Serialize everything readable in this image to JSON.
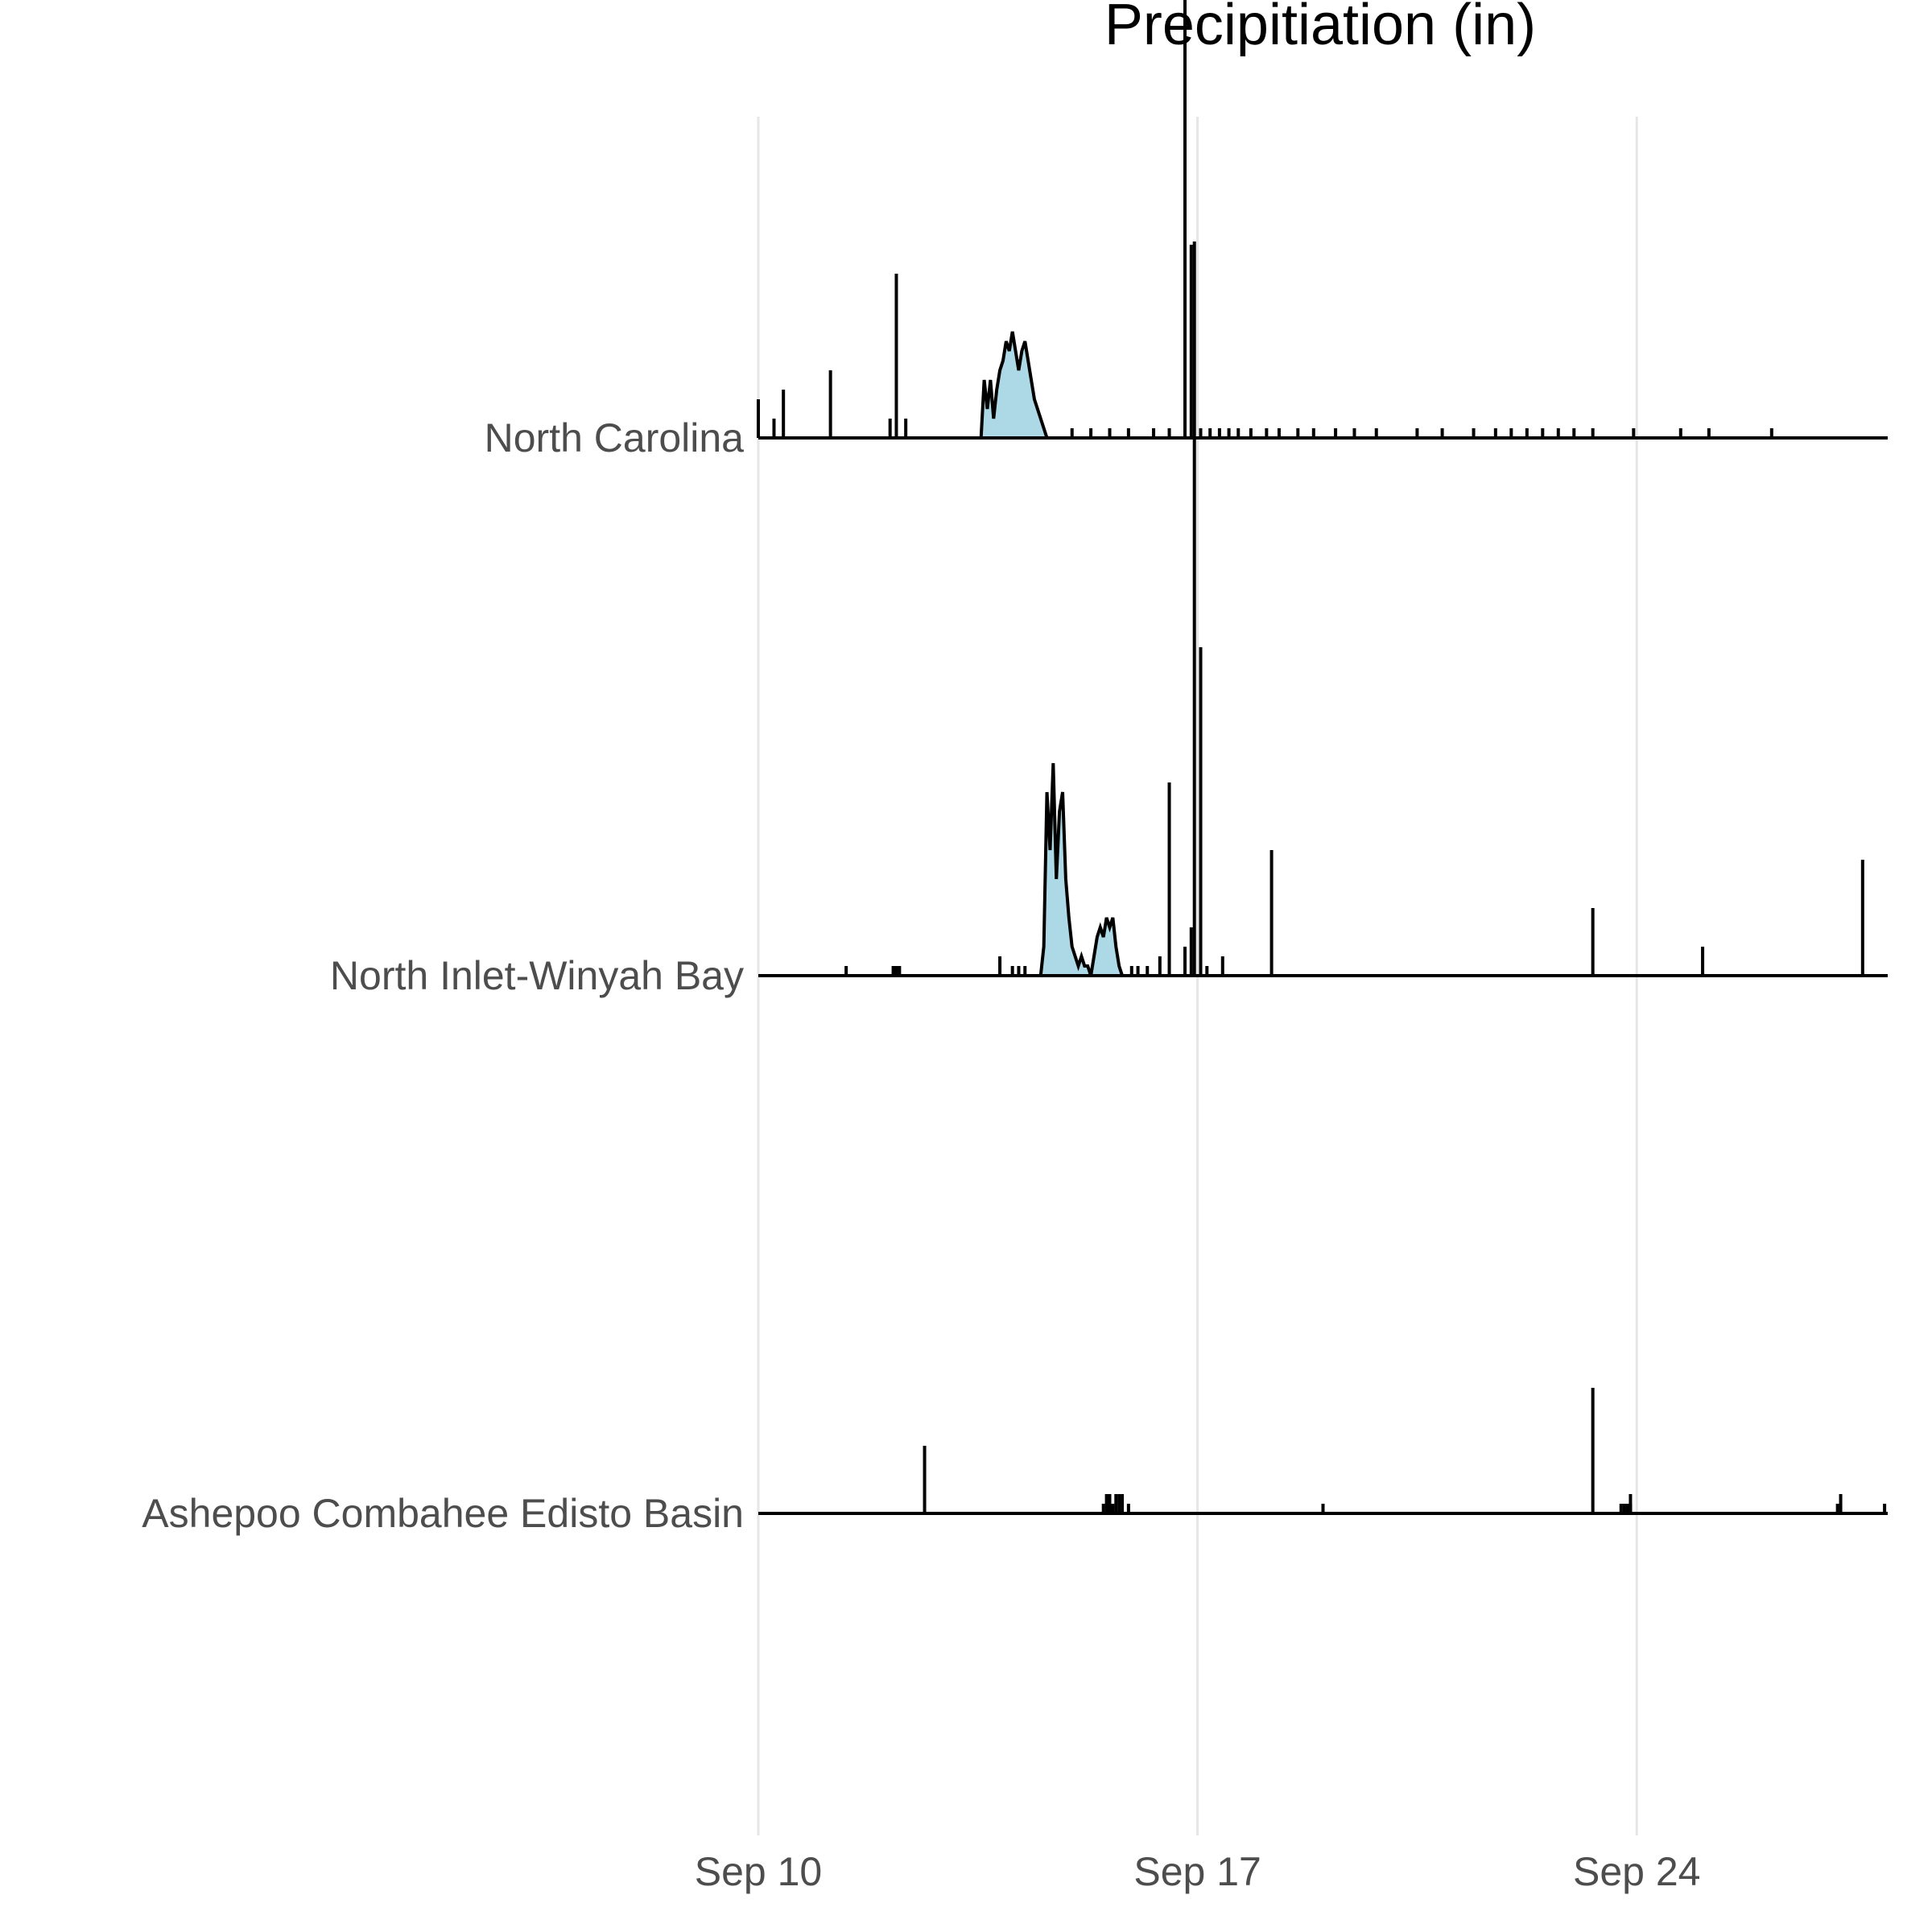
{
  "chart_data": {
    "type": "ridgeline",
    "title": "Precipitiation (in)",
    "x_axis": {
      "type": "date",
      "range": [
        "2018-09-10",
        "2018-09-28"
      ],
      "ticks": [
        {
          "date": "2018-09-10",
          "label": "Sep 10"
        },
        {
          "date": "2018-09-17",
          "label": "Sep 17"
        },
        {
          "date": "2018-09-24",
          "label": "Sep 24"
        }
      ],
      "grid": true
    },
    "y_axis": {
      "type": "category",
      "grid": false
    },
    "colors": {
      "fill": "#add8e6",
      "line": "#000000",
      "grid": "#e6e6e6"
    },
    "series": [
      {
        "name": "North Carolina",
        "spikes": [
          {
            "day": 10.0,
            "value": 0.04
          },
          {
            "day": 10.25,
            "value": 0.02
          },
          {
            "day": 10.4,
            "value": 0.05
          },
          {
            "day": 11.15,
            "value": 0.07
          },
          {
            "day": 12.1,
            "value": 0.02
          },
          {
            "day": 12.2,
            "value": 0.17
          },
          {
            "day": 12.35,
            "value": 0.02
          },
          {
            "day": 16.8,
            "value": 0.5
          },
          {
            "day": 16.9,
            "value": 0.2
          },
          {
            "day": 17.05,
            "value": 0.01
          },
          {
            "day": 17.2,
            "value": 0.01
          },
          {
            "day": 17.35,
            "value": 0.01
          },
          {
            "day": 17.5,
            "value": 0.01
          },
          {
            "day": 17.65,
            "value": 0.01
          },
          {
            "day": 17.85,
            "value": 0.01
          },
          {
            "day": 18.1,
            "value": 0.01
          },
          {
            "day": 18.3,
            "value": 0.01
          },
          {
            "day": 18.6,
            "value": 0.01
          },
          {
            "day": 18.85,
            "value": 0.01
          },
          {
            "day": 19.2,
            "value": 0.01
          },
          {
            "day": 19.5,
            "value": 0.01
          },
          {
            "day": 19.85,
            "value": 0.01
          },
          {
            "day": 20.5,
            "value": 0.01
          },
          {
            "day": 20.9,
            "value": 0.01
          },
          {
            "day": 21.4,
            "value": 0.01
          },
          {
            "day": 21.75,
            "value": 0.01
          },
          {
            "day": 22.0,
            "value": 0.01
          },
          {
            "day": 22.25,
            "value": 0.01
          },
          {
            "day": 22.5,
            "value": 0.01
          },
          {
            "day": 22.75,
            "value": 0.01
          },
          {
            "day": 23.0,
            "value": 0.01
          },
          {
            "day": 23.3,
            "value": 0.01
          },
          {
            "day": 23.95,
            "value": 0.01
          },
          {
            "day": 24.7,
            "value": 0.01
          },
          {
            "day": 25.15,
            "value": 0.01
          },
          {
            "day": 26.15,
            "value": 0.01
          },
          {
            "day": 16.3,
            "value": 0.01
          },
          {
            "day": 16.55,
            "value": 0.01
          },
          {
            "day": 15.0,
            "value": 0.01
          },
          {
            "day": 15.3,
            "value": 0.01
          },
          {
            "day": 15.6,
            "value": 0.01
          },
          {
            "day": 15.9,
            "value": 0.01
          }
        ],
        "event": [
          {
            "day": 13.55,
            "value": 0.0
          },
          {
            "day": 13.6,
            "value": 0.06
          },
          {
            "day": 13.65,
            "value": 0.03
          },
          {
            "day": 13.7,
            "value": 0.06
          },
          {
            "day": 13.75,
            "value": 0.02
          },
          {
            "day": 13.8,
            "value": 0.05
          },
          {
            "day": 13.85,
            "value": 0.07
          },
          {
            "day": 13.9,
            "value": 0.08
          },
          {
            "day": 13.95,
            "value": 0.1
          },
          {
            "day": 14.0,
            "value": 0.09
          },
          {
            "day": 14.05,
            "value": 0.11
          },
          {
            "day": 14.1,
            "value": 0.09
          },
          {
            "day": 14.15,
            "value": 0.07
          },
          {
            "day": 14.2,
            "value": 0.09
          },
          {
            "day": 14.25,
            "value": 0.1
          },
          {
            "day": 14.3,
            "value": 0.08
          },
          {
            "day": 14.35,
            "value": 0.06
          },
          {
            "day": 14.4,
            "value": 0.04
          },
          {
            "day": 14.45,
            "value": 0.03
          },
          {
            "day": 14.5,
            "value": 0.02
          },
          {
            "day": 14.55,
            "value": 0.01
          },
          {
            "day": 14.6,
            "value": 0.0
          }
        ]
      },
      {
        "name": "North Inlet-Winyah Bay",
        "spikes": [
          {
            "day": 11.4,
            "value": 0.01
          },
          {
            "day": 12.15,
            "value": 0.01
          },
          {
            "day": 12.2,
            "value": 0.01
          },
          {
            "day": 12.25,
            "value": 0.01
          },
          {
            "day": 13.85,
            "value": 0.02
          },
          {
            "day": 14.05,
            "value": 0.01
          },
          {
            "day": 14.15,
            "value": 0.01
          },
          {
            "day": 14.25,
            "value": 0.01
          },
          {
            "day": 15.95,
            "value": 0.01
          },
          {
            "day": 16.05,
            "value": 0.01
          },
          {
            "day": 16.2,
            "value": 0.01
          },
          {
            "day": 16.4,
            "value": 0.02
          },
          {
            "day": 16.55,
            "value": 0.2
          },
          {
            "day": 16.8,
            "value": 0.03
          },
          {
            "day": 16.9,
            "value": 0.05
          },
          {
            "day": 16.95,
            "value": 0.76
          },
          {
            "day": 17.05,
            "value": 0.34
          },
          {
            "day": 17.15,
            "value": 0.01
          },
          {
            "day": 17.4,
            "value": 0.02
          },
          {
            "day": 18.18,
            "value": 0.13
          },
          {
            "day": 23.3,
            "value": 0.07
          },
          {
            "day": 25.05,
            "value": 0.03
          },
          {
            "day": 27.6,
            "value": 0.12
          }
        ],
        "event": [
          {
            "day": 14.5,
            "value": 0.0
          },
          {
            "day": 14.55,
            "value": 0.03
          },
          {
            "day": 14.6,
            "value": 0.19
          },
          {
            "day": 14.65,
            "value": 0.13
          },
          {
            "day": 14.7,
            "value": 0.22
          },
          {
            "day": 14.75,
            "value": 0.1
          },
          {
            "day": 14.8,
            "value": 0.17
          },
          {
            "day": 14.85,
            "value": 0.19
          },
          {
            "day": 14.9,
            "value": 0.1
          },
          {
            "day": 14.95,
            "value": 0.06
          },
          {
            "day": 15.0,
            "value": 0.03
          },
          {
            "day": 15.05,
            "value": 0.02
          },
          {
            "day": 15.1,
            "value": 0.01
          },
          {
            "day": 15.15,
            "value": 0.02
          },
          {
            "day": 15.2,
            "value": 0.01
          },
          {
            "day": 15.25,
            "value": 0.01
          },
          {
            "day": 15.3,
            "value": 0.0
          },
          {
            "day": 15.35,
            "value": 0.02
          },
          {
            "day": 15.4,
            "value": 0.04
          },
          {
            "day": 15.45,
            "value": 0.05
          },
          {
            "day": 15.5,
            "value": 0.04
          },
          {
            "day": 15.55,
            "value": 0.06
          },
          {
            "day": 15.6,
            "value": 0.05
          },
          {
            "day": 15.65,
            "value": 0.06
          },
          {
            "day": 15.7,
            "value": 0.03
          },
          {
            "day": 15.75,
            "value": 0.01
          },
          {
            "day": 15.8,
            "value": 0.0
          }
        ]
      },
      {
        "name": "Ashepoo Combahee Edisto Basin",
        "spikes": [
          {
            "day": 12.65,
            "value": 0.07
          },
          {
            "day": 15.5,
            "value": 0.01
          },
          {
            "day": 15.55,
            "value": 0.02
          },
          {
            "day": 15.6,
            "value": 0.02
          },
          {
            "day": 15.65,
            "value": 0.01
          },
          {
            "day": 15.7,
            "value": 0.02
          },
          {
            "day": 15.75,
            "value": 0.02
          },
          {
            "day": 15.8,
            "value": 0.02
          },
          {
            "day": 15.9,
            "value": 0.01
          },
          {
            "day": 19.0,
            "value": 0.01
          },
          {
            "day": 23.3,
            "value": 0.13
          },
          {
            "day": 23.75,
            "value": 0.01
          },
          {
            "day": 23.8,
            "value": 0.01
          },
          {
            "day": 23.85,
            "value": 0.01
          },
          {
            "day": 23.9,
            "value": 0.01
          },
          {
            "day": 23.9,
            "value": 0.02
          },
          {
            "day": 27.2,
            "value": 0.01
          },
          {
            "day": 27.25,
            "value": 0.02
          },
          {
            "day": 27.95,
            "value": 0.01
          }
        ],
        "event": []
      }
    ]
  }
}
